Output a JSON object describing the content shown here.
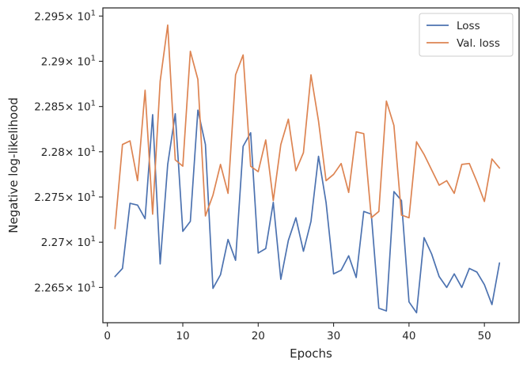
{
  "chart_data": {
    "type": "line",
    "title": "",
    "xlabel": "Epochs",
    "ylabel": "Negative log-likelihood",
    "xlim": [
      -0.6,
      54.6
    ],
    "ylim": [
      22.611,
      22.959
    ],
    "x_ticks": [
      {
        "value": 0,
        "label": "0"
      },
      {
        "value": 10,
        "label": "10"
      },
      {
        "value": 20,
        "label": "20"
      },
      {
        "value": 30,
        "label": "30"
      },
      {
        "value": 40,
        "label": "40"
      },
      {
        "value": 50,
        "label": "50"
      }
    ],
    "y_ticks": [
      {
        "value": 22.65,
        "mantissa": "2.265",
        "exponent": "1"
      },
      {
        "value": 22.7,
        "mantissa": "2.27",
        "exponent": "1"
      },
      {
        "value": 22.75,
        "mantissa": "2.275",
        "exponent": "1"
      },
      {
        "value": 22.8,
        "mantissa": "2.28",
        "exponent": "1"
      },
      {
        "value": 22.85,
        "mantissa": "2.285",
        "exponent": "1"
      },
      {
        "value": 22.9,
        "mantissa": "2.29",
        "exponent": "1"
      },
      {
        "value": 22.95,
        "mantissa": "2.295",
        "exponent": "1"
      }
    ],
    "y_tick_multiplier": "× 10",
    "grid": false,
    "legend_position": "top-right",
    "x": [
      1,
      2,
      3,
      4,
      5,
      6,
      7,
      8,
      9,
      10,
      11,
      12,
      13,
      14,
      15,
      16,
      17,
      18,
      19,
      20,
      21,
      22,
      23,
      24,
      25,
      26,
      27,
      28,
      29,
      30,
      31,
      32,
      33,
      34,
      35,
      36,
      37,
      38,
      39,
      40,
      41,
      42,
      43,
      44,
      45,
      46,
      47,
      48,
      49,
      50,
      51,
      52
    ],
    "series": [
      {
        "name": "Loss",
        "color": "#4c72b0",
        "values": [
          22.662,
          22.671,
          22.743,
          22.741,
          22.726,
          22.841,
          22.676,
          22.786,
          22.842,
          22.712,
          22.723,
          22.846,
          22.808,
          22.649,
          22.664,
          22.703,
          22.68,
          22.806,
          22.821,
          22.688,
          22.693,
          22.744,
          22.659,
          22.702,
          22.727,
          22.69,
          22.723,
          22.795,
          22.744,
          22.665,
          22.669,
          22.685,
          22.661,
          22.734,
          22.731,
          22.627,
          22.624,
          22.756,
          22.746,
          22.634,
          22.622,
          22.705,
          22.687,
          22.662,
          22.65,
          22.665,
          22.65,
          22.671,
          22.667,
          22.653,
          22.631,
          22.677
        ]
      },
      {
        "name": "Val. loss",
        "color": "#dd8452",
        "values": [
          22.715,
          22.808,
          22.812,
          22.768,
          22.868,
          22.731,
          22.878,
          22.94,
          22.791,
          22.784,
          22.911,
          22.88,
          22.729,
          22.752,
          22.786,
          22.754,
          22.885,
          22.907,
          22.784,
          22.778,
          22.813,
          22.746,
          22.808,
          22.836,
          22.779,
          22.799,
          22.885,
          22.834,
          22.768,
          22.775,
          22.787,
          22.755,
          22.822,
          22.82,
          22.727,
          22.734,
          22.856,
          22.829,
          22.73,
          22.727,
          22.811,
          22.797,
          22.78,
          22.763,
          22.768,
          22.754,
          22.786,
          22.787,
          22.767,
          22.745,
          22.792,
          22.782
        ]
      }
    ]
  }
}
